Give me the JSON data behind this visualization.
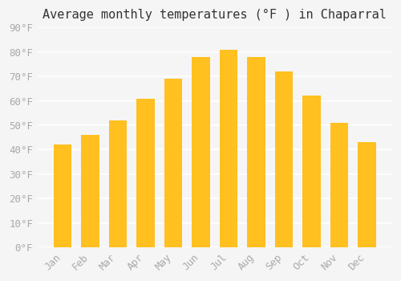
{
  "title": "Average monthly temperatures (°F ) in Chaparral",
  "months": [
    "Jan",
    "Feb",
    "Mar",
    "Apr",
    "May",
    "Jun",
    "Jul",
    "Aug",
    "Sep",
    "Oct",
    "Nov",
    "Dec"
  ],
  "values": [
    42,
    46,
    52,
    61,
    69,
    78,
    81,
    78,
    72,
    62,
    51,
    43
  ],
  "bar_color_top": "#FFC020",
  "bar_color_bottom": "#FFD870",
  "ylim": [
    0,
    90
  ],
  "yticks": [
    0,
    10,
    20,
    30,
    40,
    50,
    60,
    70,
    80,
    90
  ],
  "ytick_labels": [
    "0°F",
    "10°F",
    "20°F",
    "30°F",
    "40°F",
    "50°F",
    "60°F",
    "70°F",
    "80°F",
    "90°F"
  ],
  "background_color": "#f5f5f5",
  "grid_color": "#ffffff",
  "title_fontsize": 11,
  "tick_fontsize": 9,
  "font_family": "monospace"
}
